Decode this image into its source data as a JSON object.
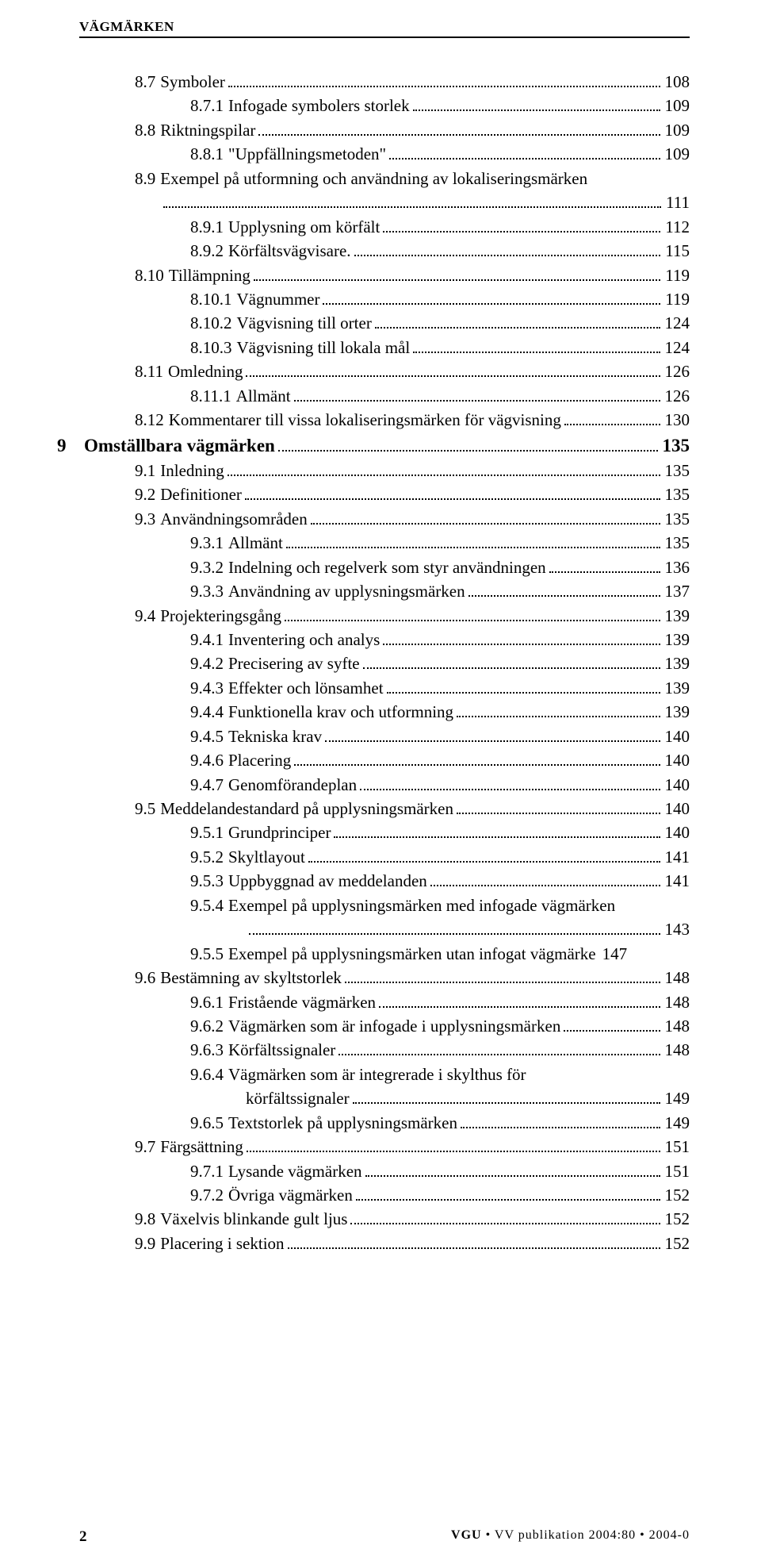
{
  "header": "VÄGMÄRKEN",
  "toc": [
    {
      "level": 2,
      "num": "8.7",
      "title": "Symboler",
      "page": "108"
    },
    {
      "level": 3,
      "num": "8.7.1",
      "title": "Infogade symbolers storlek",
      "page": "109"
    },
    {
      "level": 2,
      "num": "8.8",
      "title": "Riktningspilar",
      "page": "109"
    },
    {
      "level": 3,
      "num": "8.8.1",
      "title": "\"Uppfällningsmetoden\"",
      "page": "109"
    },
    {
      "level": 2,
      "num": "8.9",
      "title": "Exempel på utformning och användning av lokaliseringsmärken",
      "page": "111",
      "wrap": true
    },
    {
      "level": 3,
      "num": "8.9.1",
      "title": "Upplysning om körfält",
      "page": "112"
    },
    {
      "level": 3,
      "num": "8.9.2",
      "title": "Körfältsvägvisare.",
      "page": "115"
    },
    {
      "level": 2,
      "num": "8.10",
      "title": "Tillämpning",
      "page": "119"
    },
    {
      "level": 3,
      "num": "8.10.1",
      "title": "Vägnummer",
      "page": "119"
    },
    {
      "level": 3,
      "num": "8.10.2",
      "title": "Vägvisning till orter",
      "page": "124"
    },
    {
      "level": 3,
      "num": "8.10.3",
      "title": "Vägvisning till lokala mål",
      "page": "124"
    },
    {
      "level": 2,
      "num": "8.11",
      "title": "Omledning",
      "page": "126"
    },
    {
      "level": 3,
      "num": "8.11.1",
      "title": "Allmänt",
      "page": "126"
    },
    {
      "level": 2,
      "num": "8.12",
      "title": "Kommentarer till vissa lokaliseringsmärken för vägvisning",
      "page": "130"
    },
    {
      "level": 0,
      "num": "9",
      "title": "Omställbara vägmärken",
      "page": "135",
      "bold": true
    },
    {
      "level": 2,
      "num": "9.1",
      "title": "Inledning",
      "page": "135"
    },
    {
      "level": 2,
      "num": "9.2",
      "title": "Definitioner",
      "page": "135"
    },
    {
      "level": 2,
      "num": "9.3",
      "title": "Användningsområden",
      "page": "135"
    },
    {
      "level": 3,
      "num": "9.3.1",
      "title": "Allmänt",
      "page": "135"
    },
    {
      "level": 3,
      "num": "9.3.2",
      "title": "Indelning och regelverk som styr användningen",
      "page": "136"
    },
    {
      "level": 3,
      "num": "9.3.3",
      "title": "Användning av upplysningsmärken",
      "page": "137"
    },
    {
      "level": 2,
      "num": "9.4",
      "title": "Projekteringsgång",
      "page": "139"
    },
    {
      "level": 3,
      "num": "9.4.1",
      "title": "Inventering och analys",
      "page": "139"
    },
    {
      "level": 3,
      "num": "9.4.2",
      "title": "Precisering av syfte",
      "page": "139"
    },
    {
      "level": 3,
      "num": "9.4.3",
      "title": "Effekter och lönsamhet",
      "page": "139"
    },
    {
      "level": 3,
      "num": "9.4.4",
      "title": "Funktionella krav och utformning",
      "page": "139"
    },
    {
      "level": 3,
      "num": "9.4.5",
      "title": "Tekniska krav",
      "page": "140"
    },
    {
      "level": 3,
      "num": "9.4.6",
      "title": "Placering",
      "page": "140"
    },
    {
      "level": 3,
      "num": "9.4.7",
      "title": "Genomförandeplan",
      "page": "140"
    },
    {
      "level": 2,
      "num": "9.5",
      "title": "Meddelandestandard på upplysningsmärken",
      "page": "140"
    },
    {
      "level": 3,
      "num": "9.5.1",
      "title": "Grundprinciper",
      "page": "140"
    },
    {
      "level": 3,
      "num": "9.5.2",
      "title": "Skyltlayout",
      "page": "141"
    },
    {
      "level": 3,
      "num": "9.5.3",
      "title": "Uppbyggnad av meddelanden",
      "page": "141"
    },
    {
      "level": 3,
      "num": "9.5.4",
      "title": "Exempel på upplysningsmärken med infogade vägmärken",
      "page": "143",
      "wrap2": true
    },
    {
      "level": 3,
      "num": "9.5.5",
      "title": "Exempel på upplysningsmärken utan infogat vägmärke",
      "page": "147",
      "nodots": true
    },
    {
      "level": 2,
      "num": "9.6",
      "title": "Bestämning av skyltstorlek",
      "page": "148"
    },
    {
      "level": 3,
      "num": "9.6.1",
      "title": "Fristående vägmärken",
      "page": "148"
    },
    {
      "level": 3,
      "num": "9.6.2",
      "title": "Vägmärken som är infogade i upplysningsmärken",
      "page": "148"
    },
    {
      "level": 3,
      "num": "9.6.3",
      "title": "Körfältssignaler",
      "page": "148"
    },
    {
      "level": 3,
      "num": "9.6.4",
      "title": "Vägmärken som är integrerade i skylthus för körfältssignaler",
      "page": "149",
      "wrap3": true
    },
    {
      "level": 3,
      "num": "9.6.5",
      "title": "Textstorlek på upplysningsmärken",
      "page": "149"
    },
    {
      "level": 2,
      "num": "9.7",
      "title": "Färgsättning",
      "page": "151"
    },
    {
      "level": 3,
      "num": "9.7.1",
      "title": "Lysande vägmärken",
      "page": "151"
    },
    {
      "level": 3,
      "num": "9.7.2",
      "title": "Övriga vägmärken",
      "page": "152"
    },
    {
      "level": 2,
      "num": "9.8",
      "title": "Växelvis blinkande gult ljus",
      "page": "152"
    },
    {
      "level": 2,
      "num": "9.9",
      "title": "Placering i sektion",
      "page": "152"
    }
  ],
  "footer": {
    "pagenum": "2",
    "brand": "VGU",
    "pub": " • VV publikation 2004:80 • 2004-0"
  }
}
